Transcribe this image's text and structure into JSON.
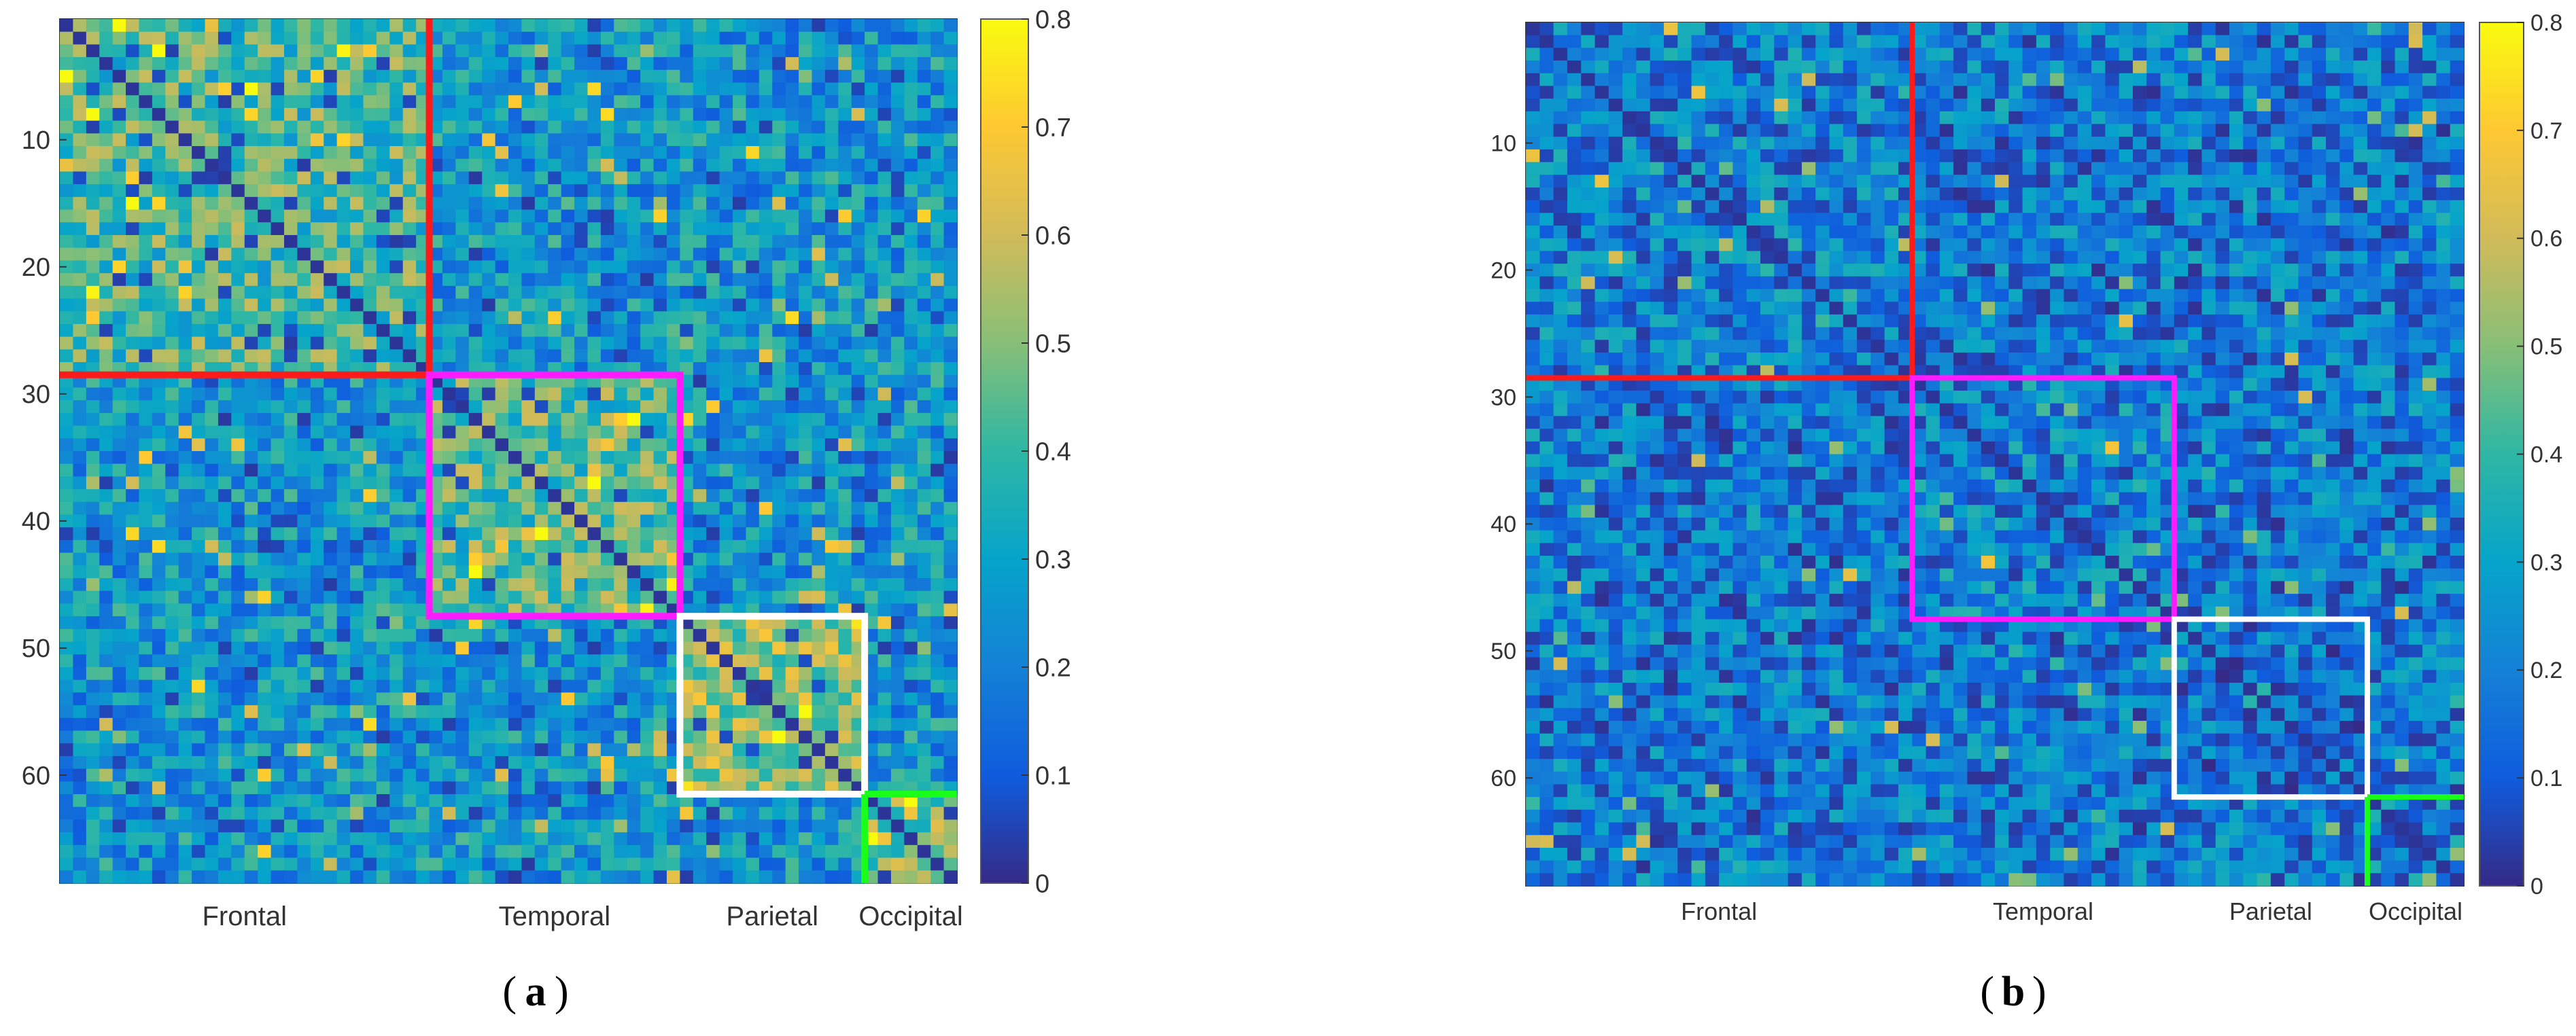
{
  "panels": [
    {
      "caption_letter": "a",
      "chart_data": {
        "type": "heatmap",
        "title": "",
        "xlabel": "",
        "ylabel": "",
        "n_nodes": 68,
        "y_ticks": [
          10,
          20,
          30,
          40,
          50,
          60
        ],
        "region_labels": [
          "Frontal",
          "Temporal",
          "Parietal",
          "Occipital"
        ],
        "regions": [
          {
            "name": "Frontal",
            "start": 1,
            "end": 28,
            "color": "#ff1a1a"
          },
          {
            "name": "Temporal",
            "start": 29,
            "end": 47,
            "color": "#ff1aff"
          },
          {
            "name": "Parietal",
            "start": 48,
            "end": 61,
            "color": "#ffffff"
          },
          {
            "name": "Occipital",
            "start": 62,
            "end": 68,
            "color": "#1aff1a"
          }
        ],
        "colorbar": {
          "min": 0,
          "max": 0.8,
          "ticks": [
            "0",
            "0.1",
            "0.2",
            "0.3",
            "0.4",
            "0.5",
            "0.6",
            "0.7",
            "0.8"
          ]
        },
        "within_module_mean": [
          0.42,
          0.43,
          0.52,
          0.5
        ],
        "between_module_mean": 0.27
      }
    },
    {
      "caption_letter": "b",
      "chart_data": {
        "type": "heatmap",
        "title": "",
        "xlabel": "",
        "ylabel": "",
        "n_nodes": 68,
        "y_ticks": [
          10,
          20,
          30,
          40,
          50,
          60
        ],
        "region_labels": [
          "Frontal",
          "Temporal",
          "Parietal",
          "Occipital"
        ],
        "regions": [
          {
            "name": "Frontal",
            "start": 1,
            "end": 28,
            "color": "#ff1a1a"
          },
          {
            "name": "Temporal",
            "start": 29,
            "end": 47,
            "color": "#ff1aff"
          },
          {
            "name": "Parietal",
            "start": 48,
            "end": 61,
            "color": "#ffffff"
          },
          {
            "name": "Occipital",
            "start": 62,
            "end": 68,
            "color": "#1aff1a"
          }
        ],
        "colorbar": {
          "min": 0,
          "max": 0.8,
          "ticks": [
            "0",
            "0.1",
            "0.2",
            "0.3",
            "0.4",
            "0.5",
            "0.6",
            "0.7",
            "0.8"
          ]
        },
        "within_module_mean": [
          0.2,
          0.22,
          0.16,
          0.2
        ],
        "between_module_mean": 0.18
      }
    }
  ]
}
